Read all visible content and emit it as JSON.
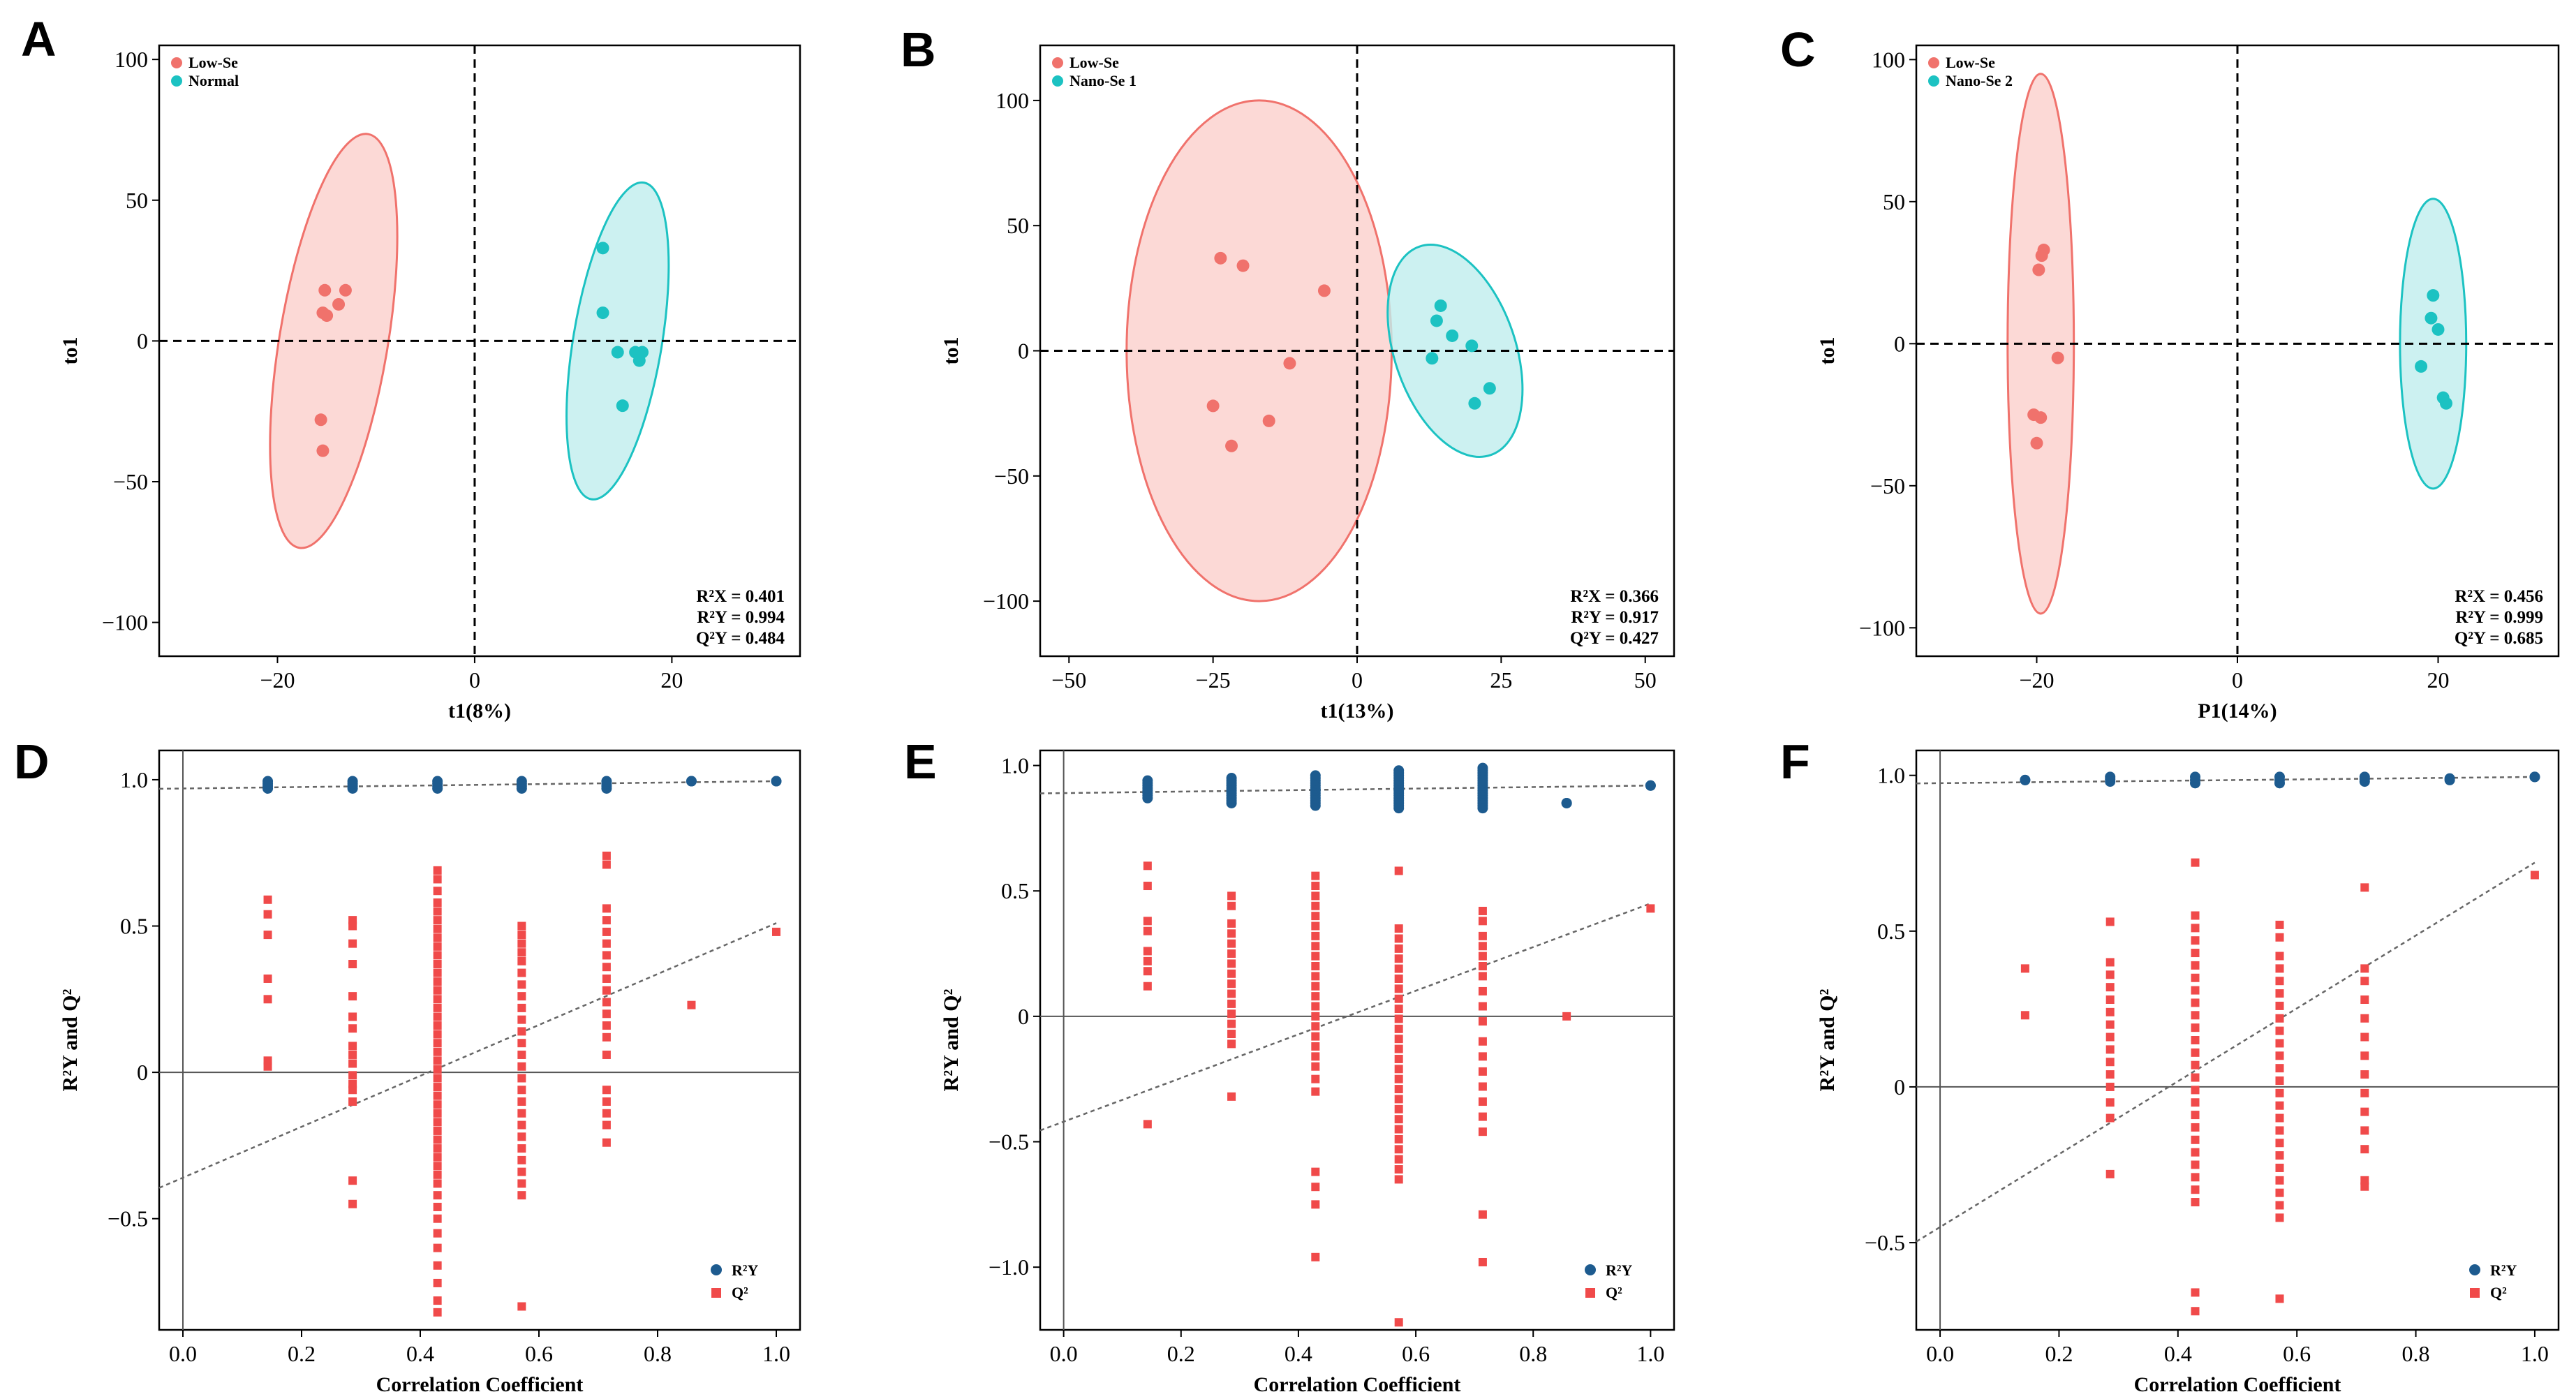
{
  "colors": {
    "red": "#f0726c",
    "red_fill": "#fbcfcc",
    "cyan": "#1cc2c2",
    "cyan_fill": "#bfeeee",
    "blue": "#1d5b8f",
    "q2_red": "#f04a4a"
  },
  "chart_data": [
    {
      "panel": "A",
      "type": "scatter",
      "xlabel": "t1(8%)",
      "ylabel": "to1",
      "xlim": [
        -32,
        33
      ],
      "ylim": [
        -112,
        105
      ],
      "xticks": [
        -20,
        0,
        20
      ],
      "yticks": [
        -100,
        -50,
        0,
        50,
        100
      ],
      "xtick_labels": [
        "−20",
        "0",
        "20"
      ],
      "ytick_labels": [
        "−100",
        "−50",
        "0",
        "50",
        "100"
      ],
      "legend": [
        "Low-Se",
        "Normal"
      ],
      "series": [
        {
          "name": "Low-Se",
          "color": "red",
          "points": [
            [
              -15.2,
              18
            ],
            [
              -13.1,
              18
            ],
            [
              -13.8,
              13
            ],
            [
              -15.4,
              10
            ],
            [
              -15.0,
              9
            ],
            [
              -15.6,
              -28
            ],
            [
              -15.4,
              -39
            ]
          ],
          "ellipse": {
            "cx": -14.3,
            "cy": 0,
            "ry_top": 75,
            "ry_bottom": -74,
            "half_width": 5.5,
            "tilt": -0.055
          }
        },
        {
          "name": "Normal",
          "color": "cyan",
          "points": [
            [
              13,
              33
            ],
            [
              13,
              10
            ],
            [
              14.5,
              -4
            ],
            [
              16.3,
              -4
            ],
            [
              16.7,
              -7
            ],
            [
              17,
              -4
            ],
            [
              15,
              -23
            ]
          ],
          "ellipse": {
            "cx": 14.5,
            "cy": 0,
            "ry_top": 57,
            "ry_bottom": -57,
            "half_width": 4.5,
            "tilt": -0.055
          }
        }
      ],
      "stats": [
        "R²X = 0.401",
        "R²Y = 0.994",
        "Q²Y = 0.484"
      ]
    },
    {
      "panel": "B",
      "type": "scatter",
      "xlabel": "t1(13%)",
      "ylabel": "to1",
      "xlim": [
        -55,
        55
      ],
      "ylim": [
        -122,
        122
      ],
      "xticks": [
        -50,
        -25,
        0,
        25,
        50
      ],
      "yticks": [
        -100,
        -50,
        0,
        50,
        100
      ],
      "xtick_labels": [
        "−50",
        "−25",
        "0",
        "25",
        "50"
      ],
      "ytick_labels": [
        "−100",
        "−50",
        "0",
        "50",
        "100"
      ],
      "legend": [
        "Low-Se",
        "Nano-Se 1"
      ],
      "series": [
        {
          "name": "Low-Se",
          "color": "red",
          "points": [
            [
              -23.7,
              37
            ],
            [
              -19.8,
              34
            ],
            [
              -5.7,
              24
            ],
            [
              -11.7,
              -5
            ],
            [
              -25,
              -22
            ],
            [
              -15.3,
              -28
            ],
            [
              -21.8,
              -38
            ]
          ],
          "ellipse": {
            "cx": -17,
            "cy": 0,
            "ry_top": 100,
            "ry_bottom": -100,
            "half_width": 23,
            "tilt": 0
          }
        },
        {
          "name": "Nano-Se 1",
          "color": "cyan",
          "points": [
            [
              14.5,
              18
            ],
            [
              13.8,
              12
            ],
            [
              16.5,
              6
            ],
            [
              19.9,
              2
            ],
            [
              13,
              -3
            ],
            [
              23,
              -15
            ],
            [
              20.4,
              -21
            ]
          ],
          "ellipse": {
            "cx": 17,
            "cy": 0,
            "ry_top": 44,
            "ry_bottom": -44,
            "half_width": 10.5,
            "tilt": 0.11
          }
        }
      ],
      "stats": [
        "R²X = 0.366",
        "R²Y = 0.917",
        "Q²Y = 0.427"
      ]
    },
    {
      "panel": "C",
      "type": "scatter",
      "xlabel": "P1(14%)",
      "ylabel": "to1",
      "xlim": [
        -32,
        32
      ],
      "ylim": [
        -110,
        105
      ],
      "xticks": [
        -20,
        0,
        20
      ],
      "yticks": [
        -100,
        -50,
        0,
        50,
        100
      ],
      "xtick_labels": [
        "−20",
        "0",
        "20"
      ],
      "ytick_labels": [
        "−100",
        "−50",
        "0",
        "50",
        "100"
      ],
      "legend": [
        "Low-Se",
        "Nano-Se 2"
      ],
      "series": [
        {
          "name": "Low-Se",
          "color": "red",
          "points": [
            [
              -19.3,
              33
            ],
            [
              -19.5,
              31
            ],
            [
              -19.8,
              26
            ],
            [
              -17.9,
              -5
            ],
            [
              -20.3,
              -25
            ],
            [
              -19.6,
              -26
            ],
            [
              -20,
              -35
            ]
          ],
          "ellipse": {
            "cx": -19.6,
            "cy": 0,
            "ry_top": 95,
            "ry_bottom": -95,
            "half_width": 3.3,
            "tilt": 0
          }
        },
        {
          "name": "Nano-Se 2",
          "color": "cyan",
          "points": [
            [
              19.5,
              17
            ],
            [
              19.3,
              9
            ],
            [
              20,
              5
            ],
            [
              18.3,
              -8
            ],
            [
              20.5,
              -19
            ],
            [
              20.8,
              -21
            ]
          ],
          "ellipse": {
            "cx": 19.5,
            "cy": 0,
            "ry_top": 51,
            "ry_bottom": -51,
            "half_width": 3.3,
            "tilt": 0
          }
        }
      ],
      "stats": [
        "R²X = 0.456",
        "R²Y = 0.999",
        "Q²Y = 0.685"
      ]
    },
    {
      "panel": "D",
      "type": "scatter",
      "xlabel": "Correlation Coefficient",
      "ylabel": "R²Y and Q²",
      "xlim": [
        -0.04,
        1.04
      ],
      "ylim": [
        -0.88,
        1.1
      ],
      "xticks": [
        0.0,
        0.2,
        0.4,
        0.6,
        0.8,
        1.0
      ],
      "yticks": [
        -0.5,
        0,
        0.5,
        1.0
      ],
      "xtick_labels": [
        "0.0",
        "0.2",
        "0.4",
        "0.6",
        "0.8",
        "1.0"
      ],
      "ytick_labels": [
        "−0.5",
        "0",
        "0.5",
        "1.0"
      ],
      "legend": [
        "R²Y",
        "Q²"
      ],
      "r2y_line": [
        0.97,
        0.995
      ],
      "q2_line": [
        -0.36,
        0.51
      ],
      "r2y_points": {
        "x": [
          0.143,
          0.286,
          0.429,
          0.571,
          0.714,
          0.857,
          1.0
        ],
        "low": [
          0.97,
          0.97,
          0.97,
          0.97,
          0.97,
          0.995,
          0.995
        ],
        "high": [
          0.995,
          0.995,
          0.995,
          0.995,
          0.995,
          0.995,
          0.995
        ]
      },
      "q2_points": [
        {
          "x": 0.143,
          "values": [
            0.59,
            0.54,
            0.47,
            0.32,
            0.25,
            0.04,
            0.02
          ]
        },
        {
          "x": 0.286,
          "values": [
            0.52,
            0.5,
            0.44,
            0.37,
            0.26,
            0.19,
            0.15,
            0.09,
            0.06,
            0.03,
            -0.01,
            -0.04,
            -0.06,
            -0.1,
            -0.37,
            -0.45
          ]
        },
        {
          "x": 0.429,
          "values": [
            0.69,
            0.66,
            0.62,
            0.58,
            0.55,
            0.52,
            0.49,
            0.46,
            0.43,
            0.4,
            0.37,
            0.34,
            0.31,
            0.28,
            0.25,
            0.22,
            0.19,
            0.16,
            0.13,
            0.1,
            0.07,
            0.04,
            0.01,
            -0.02,
            -0.05,
            -0.08,
            -0.11,
            -0.14,
            -0.17,
            -0.2,
            -0.23,
            -0.26,
            -0.29,
            -0.32,
            -0.35,
            -0.38,
            -0.42,
            -0.46,
            -0.5,
            -0.55,
            -0.6,
            -0.66,
            -0.72,
            -0.78,
            -0.82
          ]
        },
        {
          "x": 0.571,
          "values": [
            0.5,
            0.47,
            0.44,
            0.41,
            0.38,
            0.34,
            0.3,
            0.26,
            0.22,
            0.18,
            0.14,
            0.1,
            0.06,
            0.02,
            -0.02,
            -0.06,
            -0.1,
            -0.14,
            -0.18,
            -0.22,
            -0.26,
            -0.3,
            -0.34,
            -0.38,
            -0.42,
            -0.8
          ]
        },
        {
          "x": 0.714,
          "values": [
            0.74,
            0.71,
            0.56,
            0.52,
            0.48,
            0.44,
            0.4,
            0.36,
            0.32,
            0.28,
            0.24,
            0.2,
            0.16,
            0.12,
            0.06,
            -0.06,
            -0.1,
            -0.14,
            -0.18,
            -0.24
          ]
        },
        {
          "x": 0.857,
          "values": [
            0.23
          ]
        },
        {
          "x": 1.0,
          "values": [
            0.48
          ]
        }
      ]
    },
    {
      "panel": "E",
      "type": "scatter",
      "xlabel": "Correlation Coefficient",
      "ylabel": "R²Y and Q²",
      "xlim": [
        -0.04,
        1.04
      ],
      "ylim": [
        -1.25,
        1.06
      ],
      "xticks": [
        0.0,
        0.2,
        0.4,
        0.6,
        0.8,
        1.0
      ],
      "yticks": [
        -1.0,
        -0.5,
        0,
        0.5,
        1.0
      ],
      "xtick_labels": [
        "0.0",
        "0.2",
        "0.4",
        "0.6",
        "0.8",
        "1.0"
      ],
      "ytick_labels": [
        "−1.0",
        "−0.5",
        "0",
        "0.5",
        "1.0"
      ],
      "legend": [
        "R²Y",
        "Q²"
      ],
      "r2y_line": [
        0.89,
        0.92
      ],
      "q2_line": [
        -0.42,
        0.45
      ],
      "r2y_points": {
        "x": [
          0.143,
          0.286,
          0.429,
          0.571,
          0.714,
          0.857,
          1.0
        ],
        "low": [
          0.87,
          0.85,
          0.84,
          0.83,
          0.83,
          0.85,
          0.92
        ],
        "high": [
          0.94,
          0.95,
          0.96,
          0.98,
          0.99,
          0.85,
          0.92
        ]
      },
      "q2_points": [
        {
          "x": 0.143,
          "values": [
            0.6,
            0.52,
            0.38,
            0.34,
            0.26,
            0.22,
            0.18,
            0.12,
            -0.43
          ]
        },
        {
          "x": 0.286,
          "values": [
            0.48,
            0.44,
            0.37,
            0.33,
            0.29,
            0.25,
            0.21,
            0.17,
            0.13,
            0.09,
            0.05,
            0.01,
            -0.03,
            -0.07,
            -0.11,
            -0.32
          ]
        },
        {
          "x": 0.429,
          "values": [
            0.56,
            0.52,
            0.48,
            0.44,
            0.4,
            0.36,
            0.32,
            0.28,
            0.24,
            0.2,
            0.16,
            0.12,
            0.08,
            0.04,
            0.0,
            -0.04,
            -0.08,
            -0.12,
            -0.16,
            -0.2,
            -0.25,
            -0.3,
            -0.62,
            -0.68,
            -0.75,
            -0.96
          ]
        },
        {
          "x": 0.571,
          "values": [
            0.58,
            0.35,
            0.31,
            0.27,
            0.23,
            0.19,
            0.15,
            0.11,
            0.07,
            0.03,
            -0.01,
            -0.05,
            -0.09,
            -0.13,
            -0.17,
            -0.21,
            -0.25,
            -0.29,
            -0.33,
            -0.37,
            -0.41,
            -0.45,
            -0.49,
            -0.53,
            -0.57,
            -0.61,
            -0.65,
            -1.22
          ]
        },
        {
          "x": 0.714,
          "values": [
            0.42,
            0.38,
            0.32,
            0.28,
            0.24,
            0.2,
            0.16,
            0.1,
            0.04,
            -0.02,
            -0.1,
            -0.16,
            -0.22,
            -0.28,
            -0.34,
            -0.4,
            -0.46,
            -0.79,
            -0.98
          ]
        },
        {
          "x": 0.857,
          "values": [
            0.0
          ]
        },
        {
          "x": 1.0,
          "values": [
            0.43
          ]
        }
      ]
    },
    {
      "panel": "F",
      "type": "scatter",
      "xlabel": "Correlation Coefficient",
      "ylabel": "R²Y and Q²",
      "xlim": [
        -0.04,
        1.04
      ],
      "ylim": [
        -0.78,
        1.08
      ],
      "xticks": [
        0.0,
        0.2,
        0.4,
        0.6,
        0.8,
        1.0
      ],
      "yticks": [
        -0.5,
        0,
        0.5,
        1.0
      ],
      "xtick_labels": [
        "0.0",
        "0.2",
        "0.4",
        "0.6",
        "0.8",
        "1.0"
      ],
      "ytick_labels": [
        "−0.5",
        "0",
        "0.5",
        "1.0"
      ],
      "legend": [
        "R²Y",
        "Q²"
      ],
      "r2y_line": [
        0.975,
        0.995
      ],
      "q2_line": [
        -0.45,
        0.72
      ],
      "r2y_points": {
        "x": [
          0.143,
          0.286,
          0.429,
          0.571,
          0.714,
          0.857,
          1.0
        ],
        "low": [
          0.985,
          0.98,
          0.975,
          0.975,
          0.98,
          0.985,
          0.995
        ],
        "high": [
          0.985,
          0.995,
          0.995,
          0.995,
          0.995,
          0.99,
          0.995
        ]
      },
      "q2_points": [
        {
          "x": 0.143,
          "values": [
            0.38,
            0.23
          ]
        },
        {
          "x": 0.286,
          "values": [
            0.53,
            0.4,
            0.36,
            0.32,
            0.28,
            0.24,
            0.2,
            0.16,
            0.12,
            0.08,
            0.04,
            0.0,
            -0.05,
            -0.1,
            -0.28
          ]
        },
        {
          "x": 0.429,
          "values": [
            0.72,
            0.55,
            0.51,
            0.47,
            0.43,
            0.39,
            0.35,
            0.31,
            0.27,
            0.23,
            0.19,
            0.15,
            0.11,
            0.07,
            0.03,
            -0.01,
            -0.05,
            -0.09,
            -0.13,
            -0.17,
            -0.21,
            -0.25,
            -0.29,
            -0.33,
            -0.37,
            -0.66,
            -0.72
          ]
        },
        {
          "x": 0.571,
          "values": [
            0.52,
            0.48,
            0.42,
            0.38,
            0.34,
            0.3,
            0.26,
            0.22,
            0.18,
            0.14,
            0.1,
            0.06,
            0.02,
            -0.02,
            -0.06,
            -0.1,
            -0.14,
            -0.18,
            -0.22,
            -0.26,
            -0.3,
            -0.34,
            -0.38,
            -0.42,
            -0.68
          ]
        },
        {
          "x": 0.714,
          "values": [
            0.64,
            0.38,
            0.34,
            0.28,
            0.22,
            0.16,
            0.1,
            0.04,
            -0.02,
            -0.08,
            -0.14,
            -0.2,
            -0.3,
            -0.32
          ]
        },
        {
          "x": 1.0,
          "values": [
            0.68
          ]
        }
      ]
    }
  ]
}
